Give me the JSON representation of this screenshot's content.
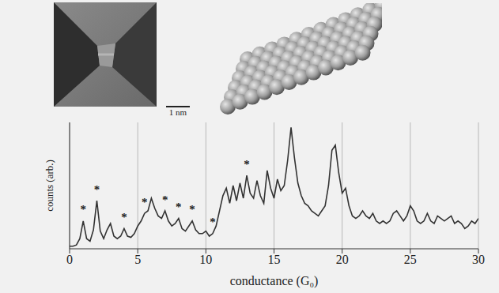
{
  "figure": {
    "scale_bar_label": "1 nm"
  },
  "chart_data": {
    "type": "line",
    "x_label": "conductance (G₀)",
    "y_label": "counts (arb.)",
    "x": [
      0,
      0.25,
      0.5,
      0.75,
      1,
      1.25,
      1.5,
      1.75,
      2,
      2.25,
      2.5,
      2.75,
      3,
      3.25,
      3.5,
      3.75,
      4,
      4.25,
      4.5,
      4.75,
      5,
      5.25,
      5.5,
      5.75,
      6,
      6.25,
      6.5,
      6.75,
      7,
      7.25,
      7.5,
      7.75,
      8,
      8.25,
      8.5,
      8.75,
      9,
      9.25,
      9.5,
      9.75,
      10,
      10.25,
      10.5,
      10.75,
      11,
      11.25,
      11.5,
      11.75,
      12,
      12.25,
      12.5,
      12.75,
      13,
      13.25,
      13.5,
      13.75,
      14,
      14.25,
      14.5,
      14.75,
      15,
      15.25,
      15.5,
      15.75,
      16,
      16.25,
      16.5,
      16.75,
      17,
      17.25,
      17.5,
      17.75,
      18,
      18.25,
      18.5,
      18.75,
      19,
      19.25,
      19.5,
      19.75,
      20,
      20.25,
      20.5,
      20.75,
      21,
      21.25,
      21.5,
      21.75,
      22,
      22.25,
      22.5,
      22.75,
      23,
      23.25,
      23.5,
      23.75,
      24,
      24.25,
      24.5,
      24.75,
      25,
      25.25,
      25.5,
      25.75,
      26,
      26.25,
      26.5,
      26.75,
      27,
      27.25,
      27.5,
      27.75,
      28,
      28.25,
      28.5,
      28.75,
      29,
      29.25,
      29.5,
      29.75,
      30
    ],
    "values": [
      2,
      2,
      3,
      8,
      22,
      8,
      6,
      15,
      38,
      14,
      8,
      15,
      20,
      10,
      8,
      10,
      16,
      10,
      9,
      12,
      18,
      22,
      28,
      30,
      40,
      32,
      26,
      24,
      30,
      22,
      18,
      20,
      24,
      16,
      14,
      18,
      22,
      15,
      12,
      12,
      14,
      10,
      12,
      18,
      30,
      42,
      48,
      36,
      50,
      38,
      52,
      40,
      58,
      44,
      40,
      54,
      42,
      36,
      62,
      48,
      40,
      55,
      46,
      50,
      70,
      96,
      72,
      52,
      42,
      36,
      34,
      30,
      28,
      26,
      30,
      34,
      50,
      78,
      82,
      60,
      44,
      48,
      34,
      26,
      24,
      26,
      30,
      26,
      24,
      28,
      22,
      20,
      22,
      20,
      22,
      28,
      30,
      26,
      22,
      26,
      34,
      30,
      22,
      20,
      22,
      28,
      22,
      20,
      26,
      24,
      22,
      24,
      26,
      20,
      22,
      20,
      16,
      18,
      22,
      20,
      24
    ],
    "color": "#333333",
    "xlim": [
      0,
      30
    ],
    "xticks": [
      0,
      5,
      10,
      15,
      20,
      25,
      30
    ],
    "ylim": [
      0,
      100
    ],
    "tick_labels": "x",
    "grid": true,
    "annotations": [
      {
        "x": 1,
        "y": 30,
        "text": "*"
      },
      {
        "x": 2,
        "y": 46,
        "text": "*"
      },
      {
        "x": 4,
        "y": 24,
        "text": "*"
      },
      {
        "x": 5.5,
        "y": 36,
        "text": "*"
      },
      {
        "x": 7,
        "y": 38,
        "text": "*"
      },
      {
        "x": 8,
        "y": 32,
        "text": "*"
      },
      {
        "x": 9,
        "y": 30,
        "text": "*"
      },
      {
        "x": 10.5,
        "y": 20,
        "text": "*"
      },
      {
        "x": 13,
        "y": 66,
        "text": "*"
      }
    ]
  }
}
